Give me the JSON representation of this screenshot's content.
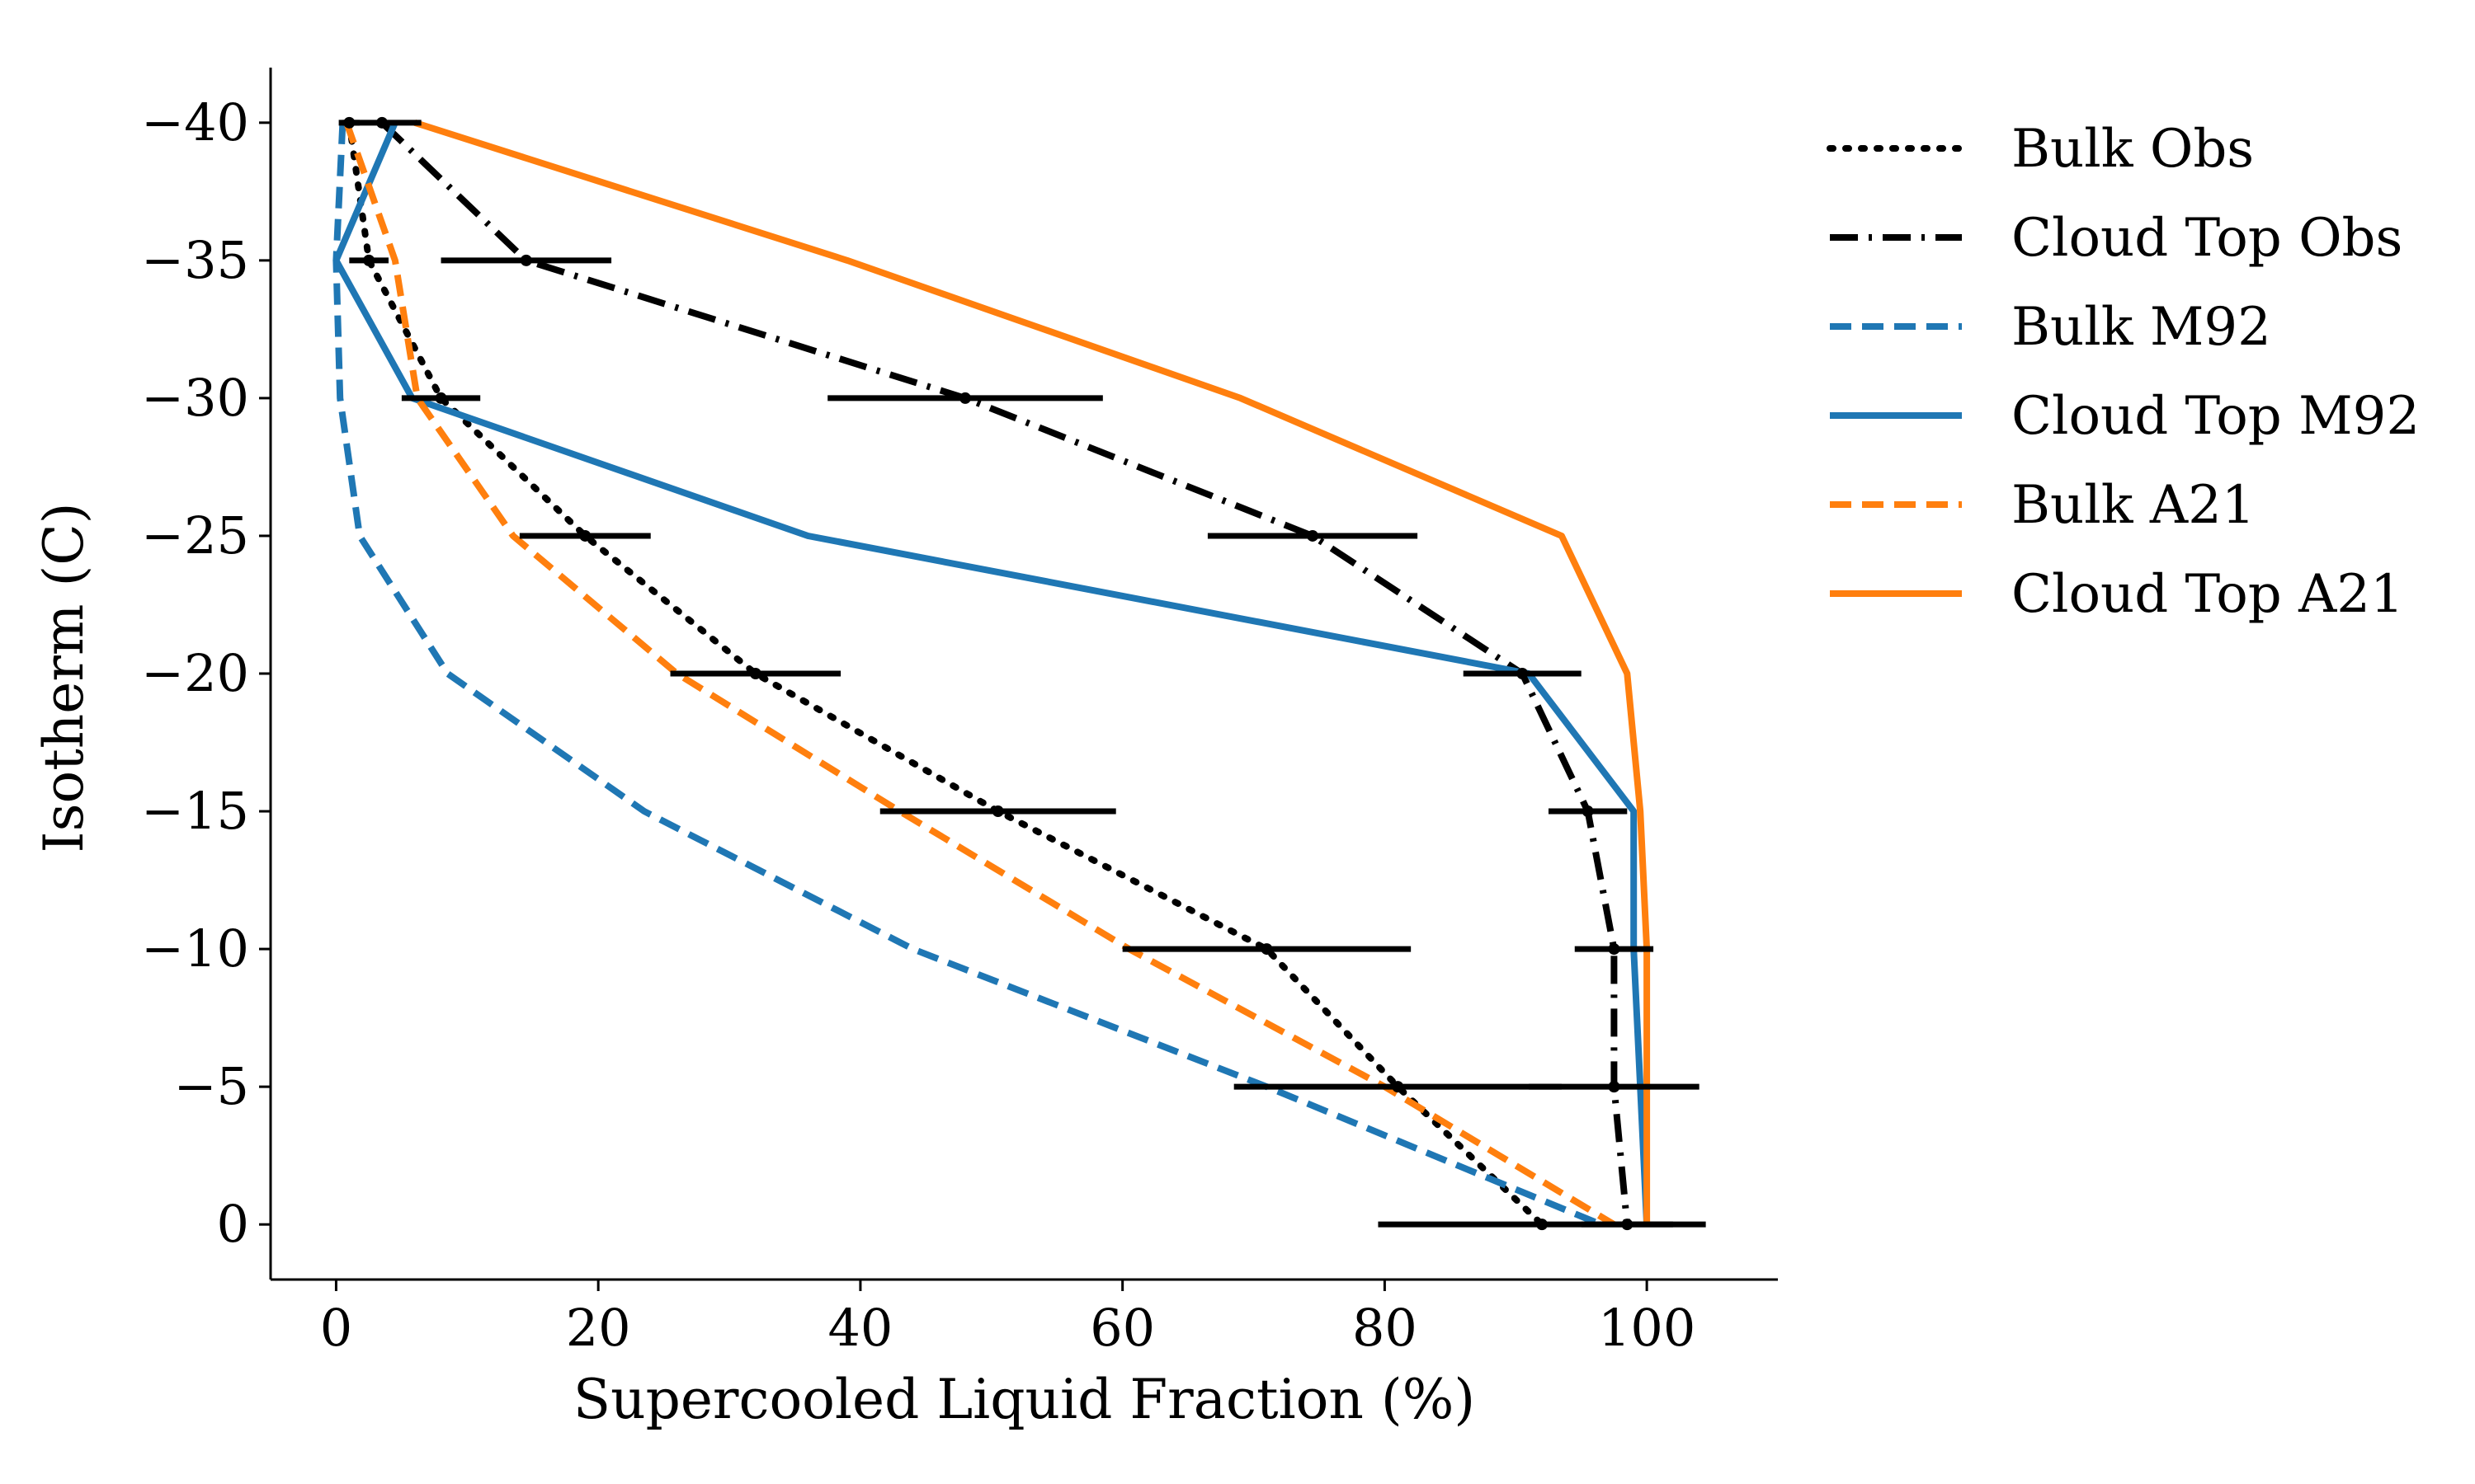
{
  "chart_data": {
    "type": "line",
    "title": "",
    "xlabel": "Supercooled Liquid Fraction (%)",
    "ylabel": "Isotherm (C)",
    "xlim": [
      -5,
      110
    ],
    "ylim": [
      2,
      -42
    ],
    "y_axis_inverted": true,
    "grid": false,
    "legend_position": "outside-right",
    "x_ticks": [
      0,
      20,
      40,
      60,
      80,
      100
    ],
    "x_tick_labels": [
      "0",
      "20",
      "40",
      "60",
      "80",
      "100"
    ],
    "y_ticks": [
      -40,
      -35,
      -30,
      -25,
      -20,
      -15,
      -10,
      -5,
      0
    ],
    "y_tick_labels": [
      "−40",
      "−35",
      "−30",
      "−25",
      "−20",
      "−15",
      "−10",
      "−5",
      "0"
    ],
    "series": [
      {
        "name": "Bulk Obs",
        "color": "#000000",
        "style": "dotted",
        "x": [
          1,
          2.5,
          8,
          19,
          32,
          50.5,
          71,
          81,
          92
        ],
        "y": [
          -40,
          -35,
          -30,
          -25,
          -20,
          -15,
          -10,
          -5,
          0
        ],
        "x_err": [
          0.8,
          1.5,
          3,
          5,
          6.5,
          9,
          11,
          12.5,
          12.5
        ]
      },
      {
        "name": "Cloud Top Obs",
        "color": "#000000",
        "style": "dashdot",
        "x": [
          3.5,
          14.5,
          48,
          74.5,
          90.5,
          95.5,
          97.5,
          97.5,
          98.5
        ],
        "y": [
          -40,
          -35,
          -30,
          -25,
          -20,
          -15,
          -10,
          -5,
          0
        ],
        "x_err": [
          3,
          6.5,
          10.5,
          8,
          4.5,
          3,
          3,
          6.5,
          3.5
        ]
      },
      {
        "name": "Bulk M92",
        "color": "#1f77b4",
        "style": "dashed",
        "x": [
          0.5,
          0,
          0.3,
          1.8,
          8.5,
          23.5,
          44,
          71,
          96.5
        ],
        "y": [
          -40,
          -35,
          -30,
          -25,
          -20,
          -15,
          -10,
          -5,
          0
        ]
      },
      {
        "name": "Cloud Top M92",
        "color": "#1f77b4",
        "style": "solid",
        "x": [
          4.5,
          0,
          5.8,
          36,
          91,
          99,
          99,
          99.5,
          100
        ],
        "y": [
          -40,
          -35,
          -30,
          -25,
          -20,
          -15,
          -10,
          -5,
          0
        ]
      },
      {
        "name": "Bulk A21",
        "color": "#ff7f0e",
        "style": "dashed",
        "x": [
          0.8,
          4.5,
          6.2,
          13.5,
          26,
          43,
          60.5,
          80,
          97.5
        ],
        "y": [
          -40,
          -35,
          -30,
          -25,
          -20,
          -15,
          -10,
          -5,
          0
        ]
      },
      {
        "name": "Cloud Top A21",
        "color": "#ff7f0e",
        "style": "solid",
        "x": [
          6,
          39,
          69,
          93.5,
          98.5,
          99.5,
          100,
          100,
          100
        ],
        "y": [
          -40,
          -35,
          -30,
          -25,
          -20,
          -15,
          -10,
          -5,
          0
        ]
      }
    ]
  }
}
